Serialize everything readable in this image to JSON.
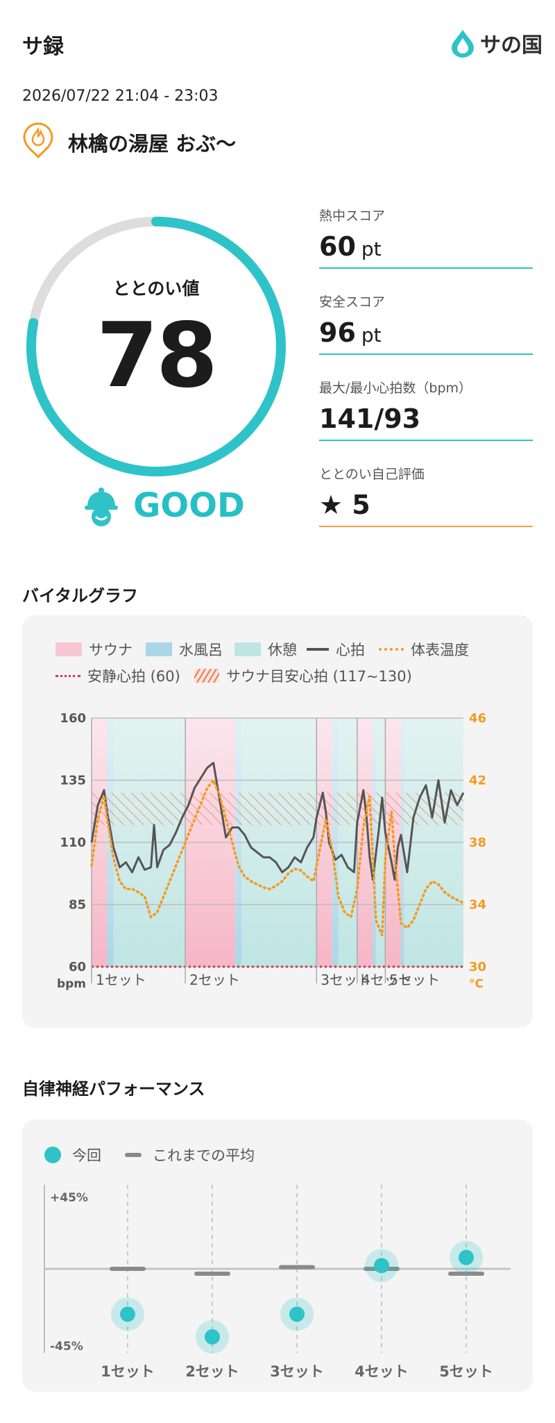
{
  "header": {
    "app_title": "サ録",
    "logo_text": "サ",
    "logo_text2": "の国"
  },
  "session": {
    "datetime": "2026/07/22 21:04 - 23:03",
    "facility": "林檎の湯屋 おぶ〜"
  },
  "score": {
    "label": "ととのい値",
    "value": "78",
    "value_fraction": 0.78,
    "rating": "GOOD"
  },
  "colors": {
    "accent": "#2ec3c8",
    "orange": "#f5a04a",
    "sauna": "#f6b6c6",
    "water": "#aad7e8",
    "rest": "#bfe5e3",
    "heart": "#555555",
    "temp": "#f39a1f"
  },
  "stats": [
    {
      "label": "熱中スコア",
      "value": "60",
      "unit": "pt"
    },
    {
      "label": "安全スコア",
      "value": "96",
      "unit": "pt"
    },
    {
      "label": "最大/最小心拍数（bpm）",
      "value": "141/93",
      "unit": ""
    },
    {
      "label": "ととのい自己評価",
      "value": "★ 5",
      "unit": ""
    }
  ],
  "vital": {
    "section_title": "バイタルグラフ",
    "legend": {
      "sauna": "サウナ",
      "water": "水風呂",
      "rest": "休憩",
      "heart": "心拍",
      "temp": "体表温度",
      "resting": "安静心拍 (60)",
      "target": "サウナ目安心拍 (117~130)"
    },
    "chart_data": {
      "type": "line",
      "left_axis": {
        "unit": "bpm",
        "ticks": [
          "160",
          "135",
          "110",
          "85",
          "60"
        ],
        "range": [
          60,
          160
        ]
      },
      "right_axis": {
        "unit": "°C",
        "ticks": [
          "46",
          "42",
          "38",
          "34",
          "30"
        ],
        "range": [
          30,
          46
        ]
      },
      "x_range": [
        0,
        119
      ],
      "set_labels": [
        "1セット",
        "2セット",
        "3セット",
        "4セット",
        "5セット"
      ],
      "set_starts": [
        0,
        30,
        72,
        85,
        94
      ],
      "phases": [
        {
          "type": "sauna",
          "start": 0,
          "end": 5
        },
        {
          "type": "water",
          "start": 5,
          "end": 7
        },
        {
          "type": "rest",
          "start": 7,
          "end": 30
        },
        {
          "type": "sauna",
          "start": 30,
          "end": 46
        },
        {
          "type": "water",
          "start": 46,
          "end": 48
        },
        {
          "type": "rest",
          "start": 48,
          "end": 72
        },
        {
          "type": "sauna",
          "start": 72,
          "end": 77
        },
        {
          "type": "water",
          "start": 77,
          "end": 79
        },
        {
          "type": "rest",
          "start": 79,
          "end": 85
        },
        {
          "type": "sauna",
          "start": 85,
          "end": 90
        },
        {
          "type": "water",
          "start": 90,
          "end": 91
        },
        {
          "type": "rest",
          "start": 91,
          "end": 94
        },
        {
          "type": "sauna",
          "start": 94,
          "end": 99
        },
        {
          "type": "water",
          "start": 99,
          "end": 100
        },
        {
          "type": "rest",
          "start": 100,
          "end": 119
        }
      ],
      "resting_hr": 60,
      "target_hr": [
        117,
        130
      ],
      "series": [
        {
          "name": "心拍",
          "x": [
            0,
            2,
            4,
            5,
            7,
            9,
            11,
            13,
            15,
            17,
            19,
            20,
            21,
            23,
            25,
            27,
            29,
            31,
            33,
            35,
            37,
            39,
            41,
            43,
            45,
            47,
            49,
            51,
            53,
            55,
            57,
            59,
            61,
            63,
            65,
            67,
            69,
            71,
            72,
            74,
            75,
            76,
            78,
            80,
            82,
            84,
            85,
            87,
            88,
            89,
            90,
            92,
            93,
            94,
            96,
            97,
            98,
            99,
            101,
            103,
            105,
            107,
            109,
            111,
            113,
            115,
            117,
            119
          ],
          "values": [
            110,
            125,
            131,
            122,
            108,
            100,
            102,
            98,
            104,
            99,
            100,
            117,
            100,
            107,
            109,
            114,
            120,
            125,
            132,
            136,
            140,
            142,
            127,
            112,
            116,
            116,
            113,
            108,
            106,
            104,
            104,
            102,
            98,
            100,
            104,
            102,
            108,
            112,
            120,
            130,
            122,
            110,
            103,
            105,
            100,
            98,
            118,
            131,
            120,
            104,
            95,
            116,
            128,
            114,
            102,
            95,
            108,
            113,
            98,
            120,
            128,
            133,
            120,
            135,
            118,
            131,
            125,
            130
          ]
        },
        {
          "name": "体表温度",
          "x": [
            0,
            2,
            4,
            5,
            7,
            9,
            11,
            13,
            15,
            17,
            19,
            21,
            23,
            25,
            27,
            29,
            31,
            33,
            35,
            37,
            39,
            41,
            43,
            45,
            47,
            49,
            51,
            53,
            55,
            57,
            59,
            61,
            63,
            65,
            67,
            69,
            71,
            73,
            75,
            77,
            79,
            81,
            83,
            85,
            87,
            89,
            90,
            91,
            93,
            94,
            96,
            97,
            98,
            99,
            101,
            103,
            105,
            107,
            109,
            111,
            113,
            115,
            117,
            119
          ],
          "values": [
            36.5,
            39.5,
            41,
            39.5,
            37,
            35.5,
            35,
            35,
            34.8,
            34.5,
            33.2,
            33.5,
            34.5,
            35.5,
            36.5,
            37.5,
            38.5,
            39.5,
            40.5,
            41.5,
            42,
            41,
            39.5,
            38,
            36.5,
            35.8,
            35.5,
            35.3,
            35.1,
            35,
            35.2,
            35.5,
            36,
            36.3,
            36.2,
            35.8,
            35.5,
            37.5,
            39.5,
            37.5,
            34.5,
            33.5,
            33.2,
            35,
            39,
            41,
            37,
            33,
            32,
            37,
            40,
            37,
            35,
            32.8,
            32.5,
            33,
            34,
            35,
            35.5,
            35.3,
            34.8,
            34.5,
            34.3,
            34.1
          ]
        }
      ]
    }
  },
  "autonomic": {
    "section_title": "自律神経パフォーマンス",
    "legend": {
      "current": "今回",
      "average": "これまでの平均"
    },
    "chart_data": {
      "type": "scatter",
      "y_ticks": [
        "+45%",
        "-45%"
      ],
      "ylim": [
        -45,
        45
      ],
      "categories": [
        "1セット",
        "2セット",
        "3セット",
        "4セット",
        "5セット"
      ],
      "series": [
        {
          "name": "今回",
          "values": [
            -28,
            -42,
            -28,
            2,
            7
          ]
        },
        {
          "name": "これまでの平均",
          "values": [
            0,
            -3,
            1,
            0,
            -3
          ]
        }
      ]
    }
  }
}
